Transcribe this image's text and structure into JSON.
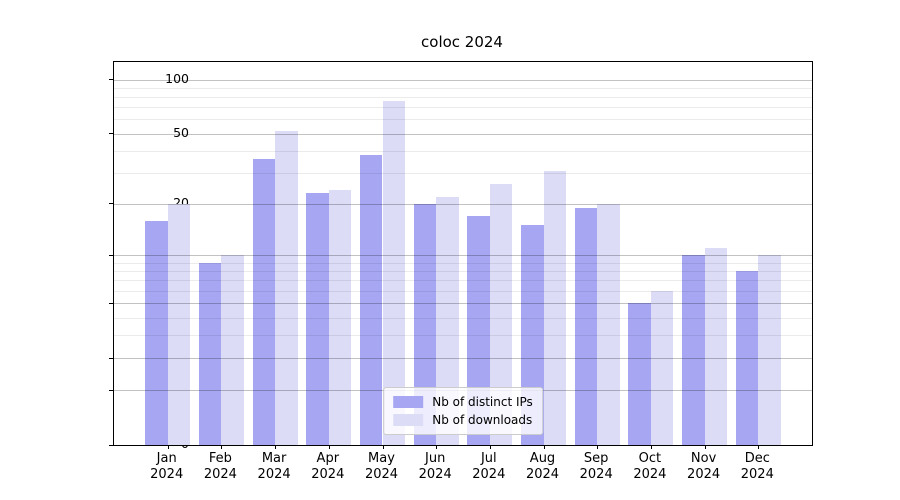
{
  "title": "coloc 2024",
  "chart_data": {
    "type": "bar",
    "categories": [
      "Jan",
      "Feb",
      "Mar",
      "Apr",
      "May",
      "Jun",
      "Jul",
      "Aug",
      "Sep",
      "Oct",
      "Nov",
      "Dec"
    ],
    "year": "2024",
    "series": [
      {
        "name": "Nb of distinct IPs",
        "color": "#a6a6f3",
        "values": [
          16,
          9,
          36,
          23,
          38,
          20,
          17,
          15,
          19,
          5,
          10,
          8
        ]
      },
      {
        "name": "Nb of downloads",
        "color": "#dcdcf7",
        "values": [
          20,
          10,
          52,
          24,
          76,
          22,
          26,
          31,
          20,
          6,
          11,
          10
        ]
      }
    ],
    "title": "coloc 2024",
    "xlabel": "",
    "ylabel": "",
    "yscale": "log10(1+x)",
    "ylim": [
      0,
      125
    ],
    "yticks_major": [
      0,
      1,
      2,
      5,
      10,
      20,
      50,
      100
    ],
    "yticks_minor": [
      3,
      4,
      6,
      7,
      8,
      9,
      30,
      40,
      60,
      70,
      80,
      90
    ],
    "grid": true,
    "legend_position": "lower center"
  }
}
